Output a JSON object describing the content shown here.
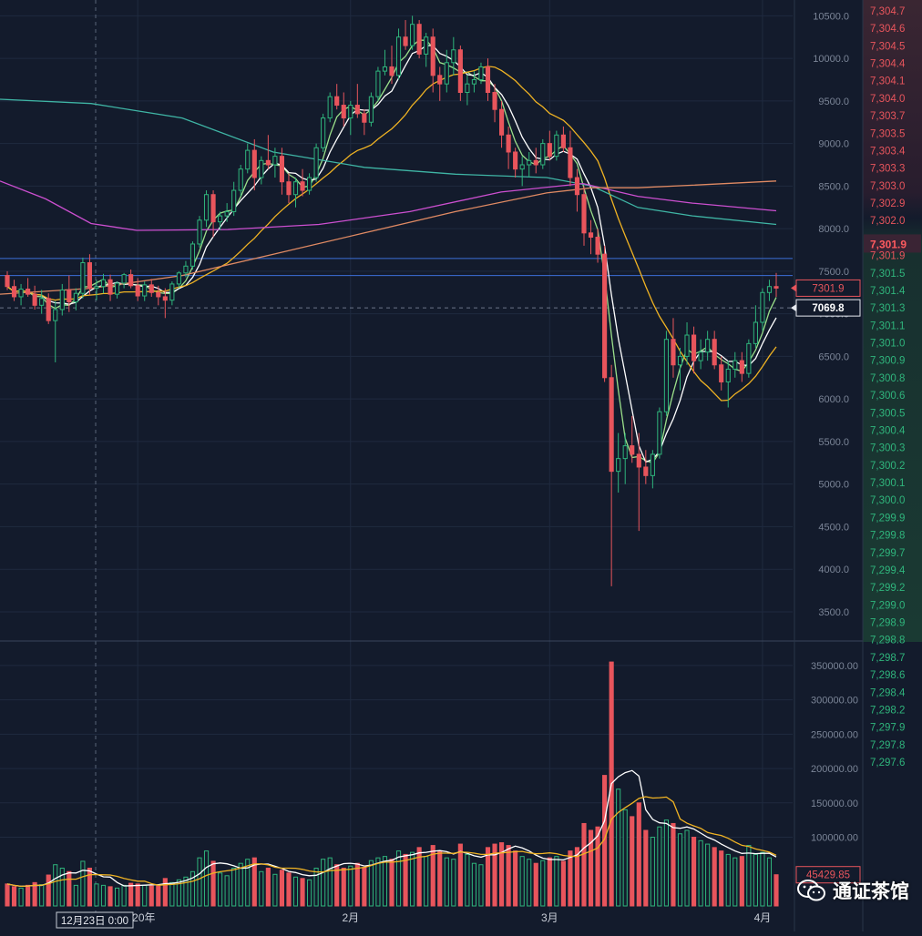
{
  "chart_data": {
    "type": "candlestick",
    "price_axis_ticks": [
      "10500.0",
      "10000.0",
      "9500.0",
      "9000.0",
      "8500.0",
      "8000.0",
      "7500.0",
      "7000.0",
      "6500.0",
      "6000.0",
      "5500.0",
      "5000.0",
      "4500.0",
      "4000.0",
      "3500.0"
    ],
    "volume_axis_ticks": [
      "350000.00",
      "300000.00",
      "250000.00",
      "200000.00",
      "150000.00",
      "100000.00"
    ],
    "right_axis_ticks": [
      "7,304.7",
      "7,304.6",
      "7,304.5",
      "7,304.4",
      "7,304.1",
      "7,304.0",
      "7,303.7",
      "7,303.5",
      "7,303.4",
      "7,303.3",
      "7,303.0",
      "7,302.9",
      "7,302.0",
      "7,301.9",
      "7,301.5",
      "7,301.4",
      "7,301.3",
      "7,301.1",
      "7,301.0",
      "7,300.9",
      "7,300.8",
      "7,300.6",
      "7,300.5",
      "7,300.4",
      "7,300.3",
      "7,300.2",
      "7,300.1",
      "7,300.0",
      "7,299.9",
      "7,299.8",
      "7,299.7",
      "7,299.4",
      "7,299.2",
      "7,299.0",
      "7,298.9",
      "7,298.8",
      "7,298.7",
      "7,298.6",
      "7,298.4",
      "7,298.2",
      "7,297.9",
      "7,297.8",
      "7,297.6"
    ],
    "right_axis_current": "7,301.9",
    "price_label_last": "7301.9",
    "price_label_crosshair": "7069.8",
    "volume_label_last": "45429.85",
    "x_labels": [
      {
        "label": "2020年",
        "date": "2020-01-01"
      },
      {
        "label": "2月",
        "date": "2020-02-01"
      },
      {
        "label": "3月",
        "date": "2020-03-01"
      },
      {
        "label": "4月",
        "date": "2020-04-01"
      }
    ],
    "crosshair_time_label": "12月23日 0:00",
    "horizontal_lines": [
      7650,
      7450
    ],
    "crosshair_price": 7069.8,
    "price_range": [
      3200,
      10600
    ],
    "volume_range": [
      0,
      375000
    ],
    "candles_ohlcv": [
      [
        7450,
        7500,
        7280,
        7320,
        32000
      ],
      [
        7320,
        7400,
        7150,
        7200,
        28000
      ],
      [
        7200,
        7350,
        7100,
        7290,
        26000
      ],
      [
        7290,
        7420,
        7200,
        7230,
        30000
      ],
      [
        7230,
        7330,
        7050,
        7100,
        34000
      ],
      [
        7100,
        7280,
        7000,
        7180,
        31000
      ],
      [
        7180,
        7240,
        6880,
        6920,
        45000
      ],
      [
        6920,
        7150,
        6430,
        7050,
        60000
      ],
      [
        7050,
        7350,
        6980,
        7280,
        55000
      ],
      [
        7280,
        7450,
        7020,
        7140,
        50000
      ],
      [
        7140,
        7300,
        7040,
        7240,
        30000
      ],
      [
        7240,
        7660,
        7180,
        7600,
        65000
      ],
      [
        7600,
        7700,
        7220,
        7300,
        55000
      ],
      [
        7300,
        7400,
        7160,
        7320,
        32000
      ],
      [
        7320,
        7470,
        7240,
        7400,
        30000
      ],
      [
        7400,
        7460,
        7150,
        7230,
        28000
      ],
      [
        7230,
        7380,
        7180,
        7360,
        26000
      ],
      [
        7360,
        7480,
        7300,
        7460,
        30000
      ],
      [
        7460,
        7520,
        7300,
        7330,
        33000
      ],
      [
        7330,
        7420,
        7150,
        7210,
        32000
      ],
      [
        7210,
        7380,
        7150,
        7340,
        30000
      ],
      [
        7340,
        7410,
        7200,
        7250,
        29000
      ],
      [
        7250,
        7330,
        7100,
        7200,
        31000
      ],
      [
        7200,
        7300,
        6950,
        7160,
        40000
      ],
      [
        7160,
        7380,
        7100,
        7350,
        34000
      ],
      [
        7350,
        7500,
        7300,
        7480,
        38000
      ],
      [
        7480,
        7620,
        7430,
        7560,
        42000
      ],
      [
        7560,
        7850,
        7520,
        7820,
        50000
      ],
      [
        7820,
        8150,
        7780,
        8100,
        70000
      ],
      [
        8100,
        8450,
        8020,
        8400,
        80000
      ],
      [
        8400,
        8450,
        7900,
        8080,
        65000
      ],
      [
        8080,
        8200,
        7980,
        8150,
        48000
      ],
      [
        8150,
        8300,
        8080,
        8200,
        44000
      ],
      [
        8200,
        8550,
        8150,
        8450,
        55000
      ],
      [
        8450,
        8750,
        8380,
        8700,
        62000
      ],
      [
        8700,
        9000,
        8650,
        8920,
        68000
      ],
      [
        8920,
        9050,
        8450,
        8600,
        70000
      ],
      [
        8600,
        8850,
        8520,
        8800,
        50000
      ],
      [
        8800,
        9100,
        8700,
        8750,
        55000
      ],
      [
        8750,
        8950,
        8600,
        8850,
        46000
      ],
      [
        8850,
        8950,
        8400,
        8550,
        52000
      ],
      [
        8550,
        8650,
        8300,
        8400,
        48000
      ],
      [
        8400,
        8600,
        8250,
        8550,
        42000
      ],
      [
        8550,
        8700,
        8380,
        8450,
        40000
      ],
      [
        8450,
        8650,
        8400,
        8600,
        38000
      ],
      [
        8600,
        9000,
        8550,
        8950,
        55000
      ],
      [
        8950,
        9350,
        8900,
        9300,
        68000
      ],
      [
        9300,
        9600,
        9250,
        9550,
        70000
      ],
      [
        9550,
        9700,
        9400,
        9450,
        60000
      ],
      [
        9450,
        9600,
        9200,
        9300,
        55000
      ],
      [
        9300,
        9500,
        9100,
        9450,
        58000
      ],
      [
        9450,
        9700,
        9300,
        9350,
        62000
      ],
      [
        9350,
        9400,
        9100,
        9250,
        56000
      ],
      [
        9250,
        9600,
        9200,
        9550,
        66000
      ],
      [
        9550,
        9900,
        9500,
        9850,
        70000
      ],
      [
        9850,
        10100,
        9800,
        9900,
        72000
      ],
      [
        9900,
        10150,
        9700,
        9800,
        68000
      ],
      [
        9800,
        10350,
        9750,
        10250,
        80000
      ],
      [
        10250,
        10450,
        10100,
        10150,
        75000
      ],
      [
        10150,
        10500,
        10100,
        10400,
        78000
      ],
      [
        10400,
        10450,
        10000,
        10050,
        85000
      ],
      [
        10050,
        10300,
        9900,
        10250,
        72000
      ],
      [
        10250,
        10350,
        9600,
        9800,
        88000
      ],
      [
        9800,
        9900,
        9500,
        9700,
        80000
      ],
      [
        9700,
        10100,
        9600,
        9950,
        70000
      ],
      [
        9950,
        10250,
        9800,
        10100,
        68000
      ],
      [
        10100,
        10150,
        9500,
        9600,
        90000
      ],
      [
        9600,
        9800,
        9450,
        9700,
        75000
      ],
      [
        9700,
        9850,
        9600,
        9750,
        62000
      ],
      [
        9750,
        9950,
        9700,
        9900,
        60000
      ],
      [
        9900,
        10000,
        9500,
        9600,
        85000
      ],
      [
        9600,
        9700,
        9250,
        9400,
        90000
      ],
      [
        9400,
        9500,
        8950,
        9100,
        92000
      ],
      [
        9100,
        9200,
        8700,
        8900,
        88000
      ],
      [
        8900,
        8950,
        8600,
        8700,
        80000
      ],
      [
        8700,
        8850,
        8500,
        8750,
        72000
      ],
      [
        8750,
        8900,
        8600,
        8800,
        68000
      ],
      [
        8800,
        8950,
        8650,
        8750,
        62000
      ],
      [
        8750,
        9050,
        8700,
        9000,
        66000
      ],
      [
        9000,
        9150,
        8800,
        8850,
        70000
      ],
      [
        8850,
        9150,
        8800,
        9100,
        72000
      ],
      [
        9100,
        9200,
        8900,
        8950,
        65000
      ],
      [
        8950,
        9150,
        8500,
        8600,
        80000
      ],
      [
        8600,
        8700,
        8200,
        8400,
        85000
      ],
      [
        8400,
        8500,
        7800,
        7950,
        120000
      ],
      [
        7950,
        8100,
        7700,
        7900,
        110000
      ],
      [
        7900,
        8000,
        7600,
        7700,
        115000
      ],
      [
        7700,
        7800,
        6200,
        6250,
        190000
      ],
      [
        6250,
        6400,
        3800,
        5150,
        355000
      ],
      [
        5150,
        5600,
        4900,
        5300,
        170000
      ],
      [
        5300,
        5600,
        5000,
        5450,
        140000
      ],
      [
        5450,
        5800,
        5250,
        5350,
        130000
      ],
      [
        5350,
        5600,
        4450,
        5200,
        150000
      ],
      [
        5200,
        5400,
        5000,
        5100,
        110000
      ],
      [
        5100,
        5400,
        4950,
        5350,
        100000
      ],
      [
        5350,
        5900,
        5300,
        5850,
        115000
      ],
      [
        5850,
        6800,
        5800,
        6700,
        125000
      ],
      [
        6700,
        6950,
        6250,
        6400,
        120000
      ],
      [
        6400,
        6600,
        6100,
        6500,
        105000
      ],
      [
        6500,
        6900,
        6400,
        6750,
        110000
      ],
      [
        6750,
        6850,
        6300,
        6450,
        100000
      ],
      [
        6450,
        6700,
        6350,
        6550,
        95000
      ],
      [
        6550,
        6800,
        6450,
        6700,
        90000
      ],
      [
        6700,
        6800,
        6350,
        6400,
        85000
      ],
      [
        6400,
        6500,
        6100,
        6200,
        80000
      ],
      [
        6200,
        6450,
        5900,
        6350,
        75000
      ],
      [
        6350,
        6550,
        6250,
        6450,
        70000
      ],
      [
        6450,
        6550,
        6200,
        6300,
        72000
      ],
      [
        6300,
        6700,
        6250,
        6650,
        88000
      ],
      [
        6650,
        7100,
        6600,
        6900,
        75000
      ],
      [
        6900,
        7300,
        6800,
        7250,
        78000
      ],
      [
        7250,
        7400,
        7150,
        7320,
        70000
      ],
      [
        7320,
        7480,
        7200,
        7301.9,
        45429.85
      ]
    ],
    "moving_averages_volume": [
      "white",
      "orange"
    ],
    "moving_averages_price": [
      "white",
      "green",
      "orange",
      "teal",
      "magenta",
      "salmon"
    ]
  },
  "watermark": {
    "text": "通证茶馆",
    "icon": "wechat-icon"
  },
  "colors": {
    "background": "#131b2c",
    "up": "#2fb57c",
    "down": "#e8555c",
    "grid": "#1f2a3f",
    "axis_text": "#7b8597",
    "right_up": "#e8555c",
    "right_down": "#2fb57c"
  }
}
